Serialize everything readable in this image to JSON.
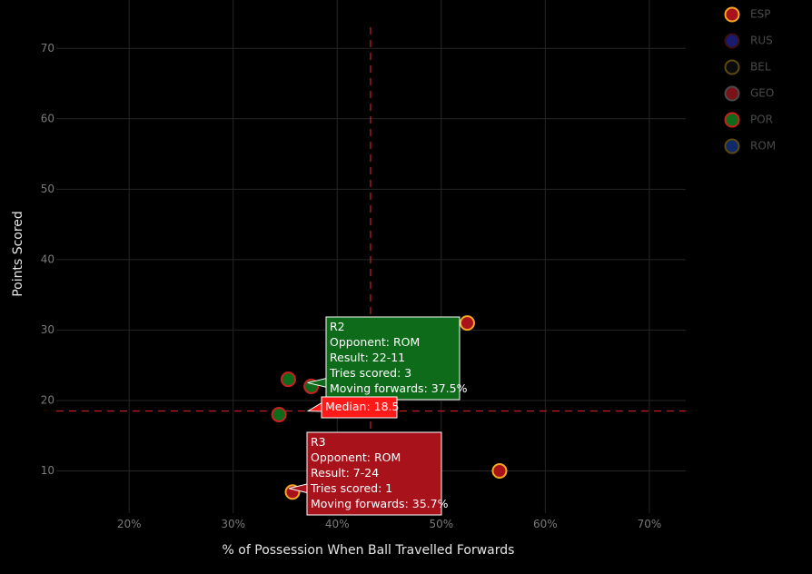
{
  "chart_data": {
    "type": "scatter",
    "title": "",
    "xlabel": "% of Possession When Ball Travelled Forwards",
    "ylabel": "Points Scored",
    "xlim": [
      13,
      73.5
    ],
    "ylim": [
      4,
      73
    ],
    "x_ticks": [
      {
        "value": 20,
        "label": "20%"
      },
      {
        "value": 30,
        "label": "30%"
      },
      {
        "value": 40,
        "label": "40%"
      },
      {
        "value": 50,
        "label": "50%"
      },
      {
        "value": 60,
        "label": "60%"
      },
      {
        "value": 70,
        "label": "70%"
      }
    ],
    "y_ticks": [
      {
        "value": 10,
        "label": "10"
      },
      {
        "value": 20,
        "label": "20"
      },
      {
        "value": 30,
        "label": "30"
      },
      {
        "value": 40,
        "label": "40"
      },
      {
        "value": 50,
        "label": "50"
      },
      {
        "value": 60,
        "label": "60"
      },
      {
        "value": 70,
        "label": "70"
      }
    ],
    "grid": true,
    "legend_position": "right",
    "legend": [
      {
        "label": "ESP",
        "fill": "#a8131b",
        "stroke": "#f5a623"
      },
      {
        "label": "RUS",
        "fill": "#1a1a6e",
        "stroke": "#3a1010"
      },
      {
        "label": "BEL",
        "fill": "#0b0b0b",
        "stroke": "#5c4a12"
      },
      {
        "label": "GEO",
        "fill": "#7a1218",
        "stroke": "#4a4a4a"
      },
      {
        "label": "POR",
        "fill": "#0e6b1a",
        "stroke": "#cc1f1f"
      },
      {
        "label": "ROM",
        "fill": "#0f2a6b",
        "stroke": "#5c4a12"
      }
    ],
    "series": [
      {
        "team": "ESP",
        "fill": "#a8131b",
        "stroke": "#f5a623",
        "points": [
          {
            "x": 52.5,
            "y": 31
          },
          {
            "x": 55.6,
            "y": 10
          },
          {
            "x": 35.7,
            "y": 7
          }
        ]
      },
      {
        "team": "POR",
        "fill": "#0e6b1a",
        "stroke": "#cc1f1f",
        "points": [
          {
            "x": 35.3,
            "y": 23
          },
          {
            "x": 37.5,
            "y": 22
          },
          {
            "x": 34.4,
            "y": 18
          }
        ]
      }
    ],
    "reference_lines": {
      "color": "#cc1f1f",
      "vertical_x": 43.2,
      "horizontal_y": 18.5
    },
    "tooltips": [
      {
        "anchor": {
          "x": 37.5,
          "y": 22
        },
        "bg": "#0e6b1a",
        "lines": [
          "R2",
          "Opponent: ROM",
          "Result: 22-11",
          "Tries scored: 3",
          "Moving forwards: 37.5%"
        ]
      },
      {
        "anchor": {
          "x": 35.7,
          "y": 7
        },
        "bg": "#a8131b",
        "lines": [
          "R3",
          "Opponent: ROM",
          "Result: 7-24",
          "Tries scored: 1",
          "Moving forwards: 35.7%"
        ]
      },
      {
        "anchor": {
          "x": 37.2,
          "y": 18.5
        },
        "bg": "#ff1a1a",
        "lines": [
          "Median: 18.5"
        ]
      }
    ]
  }
}
